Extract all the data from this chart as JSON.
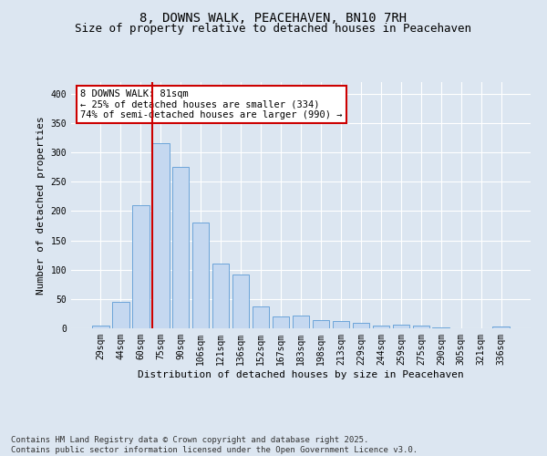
{
  "title_line1": "8, DOWNS WALK, PEACEHAVEN, BN10 7RH",
  "title_line2": "Size of property relative to detached houses in Peacehaven",
  "xlabel": "Distribution of detached houses by size in Peacehaven",
  "ylabel": "Number of detached properties",
  "categories": [
    "29sqm",
    "44sqm",
    "60sqm",
    "75sqm",
    "90sqm",
    "106sqm",
    "121sqm",
    "136sqm",
    "152sqm",
    "167sqm",
    "183sqm",
    "198sqm",
    "213sqm",
    "229sqm",
    "244sqm",
    "259sqm",
    "275sqm",
    "290sqm",
    "305sqm",
    "321sqm",
    "336sqm"
  ],
  "values": [
    5,
    45,
    210,
    315,
    275,
    180,
    110,
    92,
    38,
    21,
    22,
    14,
    12,
    10,
    4,
    6,
    4,
    2,
    0,
    0,
    3
  ],
  "bar_color": "#c5d8f0",
  "bar_edge_color": "#5b9bd5",
  "vline_index": 3,
  "vline_color": "#cc0000",
  "annotation_line1": "8 DOWNS WALK: 81sqm",
  "annotation_line2": "← 25% of detached houses are smaller (334)",
  "annotation_line3": "74% of semi-detached houses are larger (990) →",
  "annotation_box_color": "#cc0000",
  "background_color": "#dce6f1",
  "plot_bg_color": "#dce6f1",
  "ylim": [
    0,
    420
  ],
  "yticks": [
    0,
    50,
    100,
    150,
    200,
    250,
    300,
    350,
    400
  ],
  "footer_line1": "Contains HM Land Registry data © Crown copyright and database right 2025.",
  "footer_line2": "Contains public sector information licensed under the Open Government Licence v3.0.",
  "title_fontsize": 10,
  "subtitle_fontsize": 9,
  "axis_label_fontsize": 8,
  "tick_fontsize": 7,
  "footer_fontsize": 6.5,
  "annotation_fontsize": 7.5
}
